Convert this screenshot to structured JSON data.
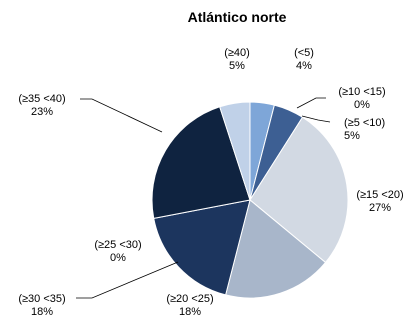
{
  "chart_data": {
    "type": "pie",
    "title": "Atlántico norte",
    "start_angle_deg": 0,
    "direction": "clockwise",
    "slices": [
      {
        "label": "(<5)",
        "value_label": "4%",
        "value": 4,
        "color": "#7ea6d8"
      },
      {
        "label": "(≥10  <15)",
        "value_label": "0%",
        "value": 0,
        "color": "#2b4a7e"
      },
      {
        "label": "(≥5  <10)",
        "value_label": "5%",
        "value": 5,
        "color": "#3d5f93"
      },
      {
        "label": "(≥15  <20)",
        "value_label": "27%",
        "value": 27,
        "color": "#d2d9e3"
      },
      {
        "label": "(≥20  <25)",
        "value_label": "18%",
        "value": 18,
        "color": "#a8b6ca"
      },
      {
        "label": "(≥30  <35)",
        "value_label": "18%",
        "value": 18,
        "color": "#1c355e"
      },
      {
        "label": "(≥25  <30)",
        "value_label": "0%",
        "value": 0,
        "color": "#24406c"
      },
      {
        "label": "(≥35  <40)",
        "value_label": "23%",
        "value": 23,
        "color": "#0f2340"
      },
      {
        "label": "(≥40)",
        "value_label": "5%",
        "value": 5,
        "color": "#c0d1e8"
      }
    ]
  }
}
